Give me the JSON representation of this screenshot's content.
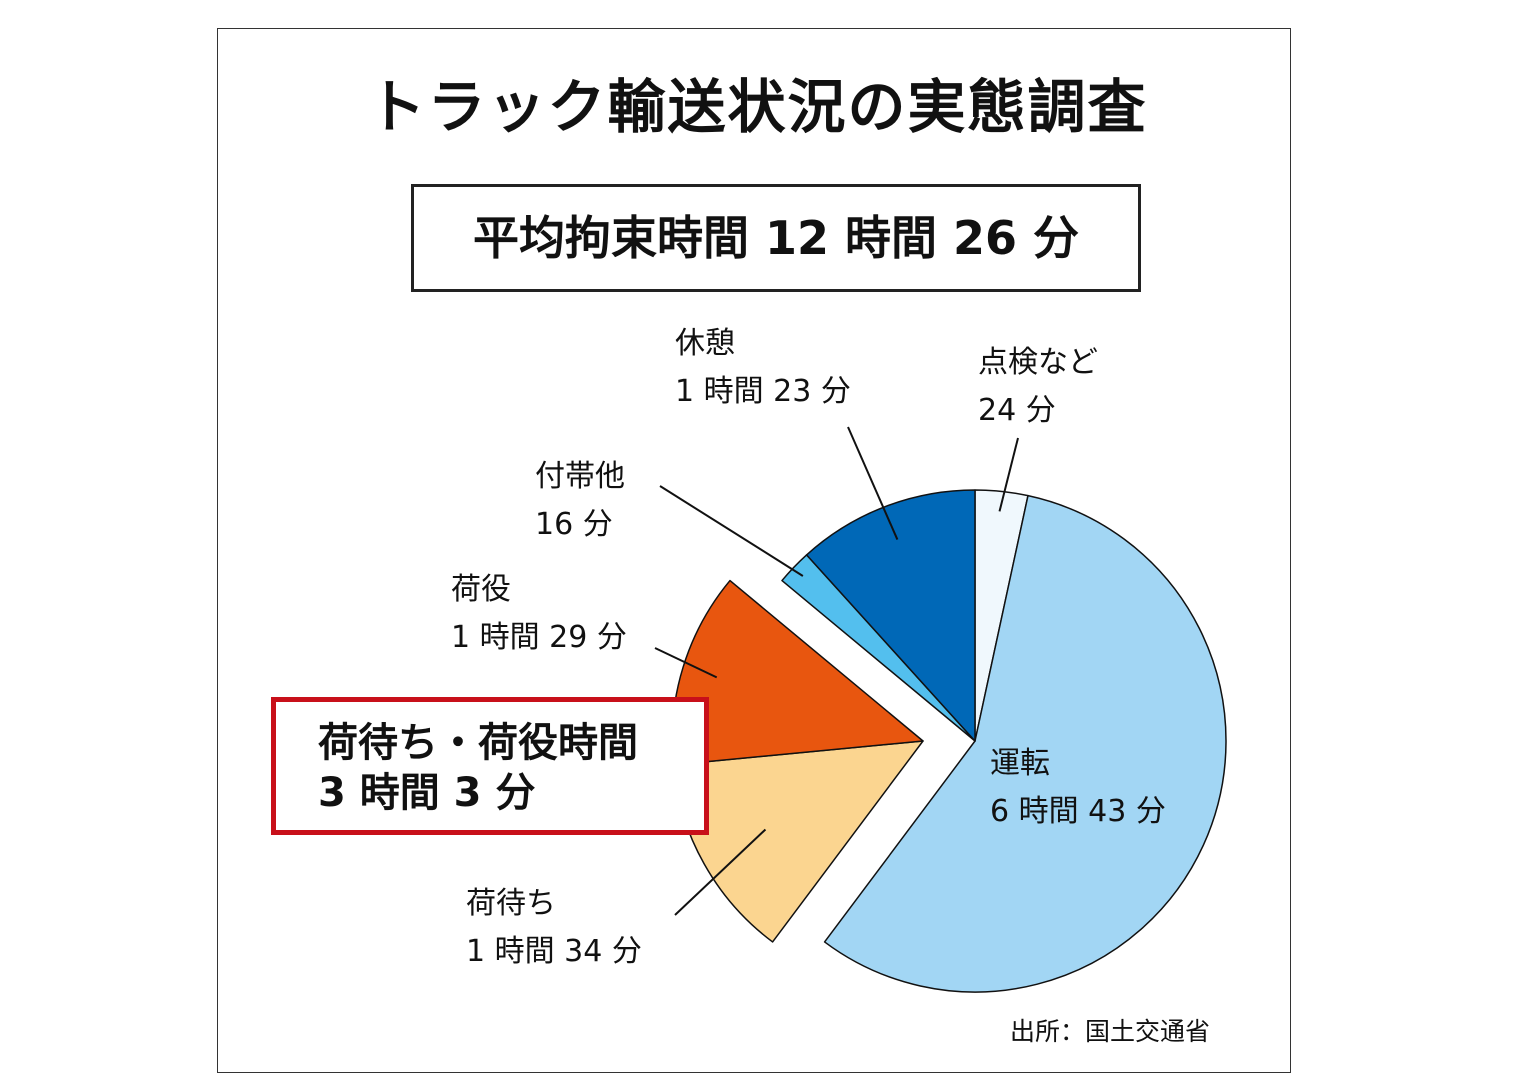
{
  "title": "トラック輸送状況の実態調査",
  "total": "平均拘束時間 12 時間 26 分",
  "highlight": {
    "line1": "荷待ち・荷役時間",
    "line2": "3 時間 3 分"
  },
  "source": "出所：国土交通省",
  "chart_data": {
    "type": "pie",
    "unit": "minutes",
    "total_minutes": 746,
    "slices": [
      {
        "key": "inspection",
        "name": "点検など",
        "label": "24 分",
        "value": 24,
        "color": "#f0f8fd"
      },
      {
        "key": "driving",
        "name": "運転",
        "label": "6 時間 43 分",
        "value": 403,
        "color": "#a2d6f4"
      },
      {
        "key": "waiting",
        "name": "荷待ち",
        "label": "1 時間 34 分",
        "value": 94,
        "color": "#fbd590",
        "exploded": true
      },
      {
        "key": "handling",
        "name": "荷役",
        "label": "1 時間 29 分",
        "value": 89,
        "color": "#e8560f",
        "exploded": true
      },
      {
        "key": "incidental",
        "name": "付帯他",
        "label": "16 分",
        "value": 16,
        "color": "#53bfee"
      },
      {
        "key": "rest",
        "name": "休憩",
        "label": "1 時間 23 分",
        "value": 83,
        "color": "#0068b7"
      }
    ]
  }
}
